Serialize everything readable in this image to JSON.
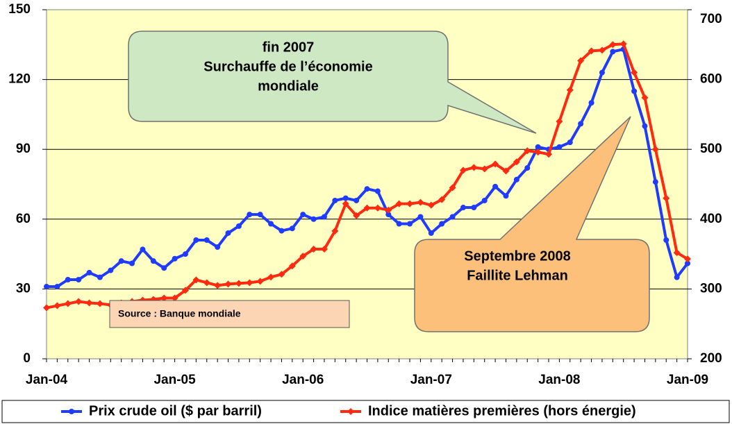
{
  "chart_data": {
    "type": "line",
    "categories": [
      "Jan-04",
      null,
      null,
      null,
      null,
      null,
      null,
      null,
      null,
      null,
      null,
      null,
      "Jan-05",
      null,
      null,
      null,
      null,
      null,
      null,
      null,
      null,
      null,
      null,
      null,
      "Jan-06",
      null,
      null,
      null,
      null,
      null,
      null,
      null,
      null,
      null,
      null,
      null,
      "Jan-07",
      null,
      null,
      null,
      null,
      null,
      null,
      null,
      null,
      null,
      null,
      null,
      "Jan-08",
      null,
      null,
      null,
      null,
      null,
      null,
      null,
      null,
      null,
      null,
      null,
      "Jan-09"
    ],
    "series": [
      {
        "name": "Prix crude oil ($ par barril)",
        "color": "#1f3bff",
        "marker": "circle",
        "axis": "y",
        "values": [
          31,
          31,
          34,
          34,
          37,
          35,
          38,
          42,
          41,
          47,
          42,
          39,
          43,
          45,
          51,
          51,
          48,
          54,
          57,
          62,
          62,
          58,
          55,
          56,
          62,
          60,
          61,
          68,
          69,
          68,
          73,
          72,
          62,
          58,
          58,
          61,
          54,
          58,
          61,
          65,
          65,
          68,
          74,
          70,
          77,
          82,
          91,
          90,
          91,
          93,
          101,
          110,
          123,
          132,
          133,
          115,
          100,
          76,
          51,
          35,
          41
        ]
      },
      {
        "name": "Indice matières premières (hors énergie)",
        "color": "#ff2a10",
        "marker": "diamond",
        "axis": "y2",
        "values": [
          273,
          276,
          279,
          282,
          280,
          279,
          277,
          280,
          282,
          284,
          285,
          287,
          287,
          298,
          313,
          309,
          305,
          307,
          308,
          309,
          311,
          317,
          321,
          333,
          347,
          357,
          357,
          383,
          422,
          405,
          416,
          416,
          413,
          422,
          422,
          424,
          420,
          428,
          445,
          470,
          474,
          472,
          479,
          469,
          482,
          498,
          496,
          493,
          540,
          585,
          627,
          641,
          642,
          650,
          651,
          610,
          574,
          500,
          430,
          352,
          343
        ]
      }
    ],
    "ylim": [
      0,
      150
    ],
    "yticks": [
      0,
      30,
      60,
      90,
      120,
      150
    ],
    "y2lim": [
      200,
      700
    ],
    "y2ticks": [
      200,
      300,
      400,
      500,
      600,
      700
    ],
    "grid": true,
    "legend": "bottom",
    "annotations": [
      {
        "lines": [
          "fin 2007",
          "Surchauffe de l’économie",
          "mondiale"
        ]
      },
      {
        "lines": [
          "Septembre 2008",
          "Faillite Lehman"
        ]
      },
      {
        "lines": [
          "Source : Banque mondiale"
        ]
      }
    ]
  }
}
